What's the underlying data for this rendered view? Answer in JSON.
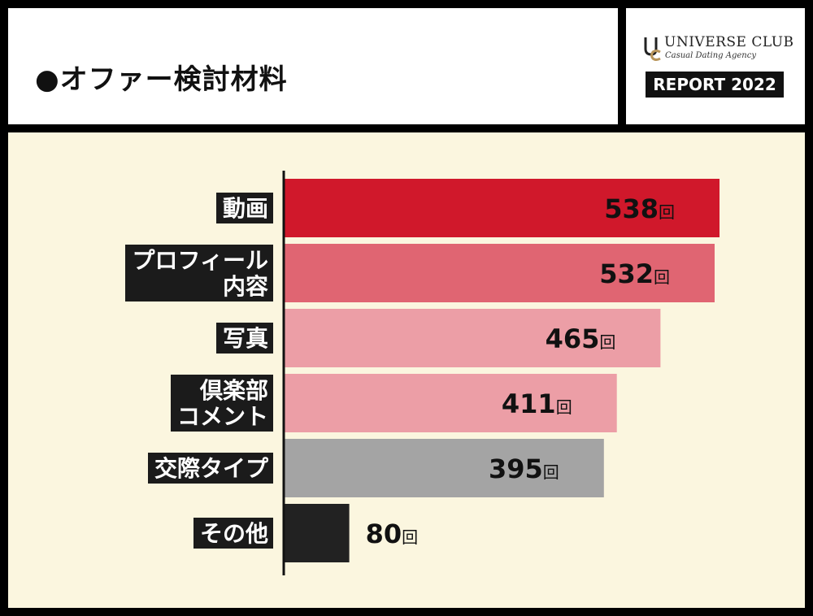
{
  "header": {
    "title": "●オファー検討材料"
  },
  "brand": {
    "name": "UNIVERSE CLUB",
    "tagline": "Casual Dating Agency",
    "report": "REPORT 2022",
    "logo_icon": "uc-monogram-icon"
  },
  "colors": {
    "panel_bg": "#fbf6df",
    "frame": "#000000"
  },
  "chart_data": {
    "type": "bar",
    "orientation": "horizontal",
    "categories": [
      "動画",
      "プロフィール内容",
      "写真",
      "倶楽部コメント",
      "交際タイプ",
      "その他"
    ],
    "category_lines": [
      [
        "動画"
      ],
      [
        "プロフィール",
        "内容"
      ],
      [
        "写真"
      ],
      [
        "倶楽部",
        "コメント"
      ],
      [
        "交際タイプ"
      ],
      [
        "その他"
      ]
    ],
    "values": [
      538,
      532,
      465,
      411,
      395,
      80
    ],
    "unit": "回",
    "colors": [
      "#d0182b",
      "#e06572",
      "#ec9ea6",
      "#ec9ea6",
      "#a4a4a4",
      "#222222"
    ],
    "xlim": [
      0,
      538
    ],
    "grid": false,
    "legend": "none"
  }
}
